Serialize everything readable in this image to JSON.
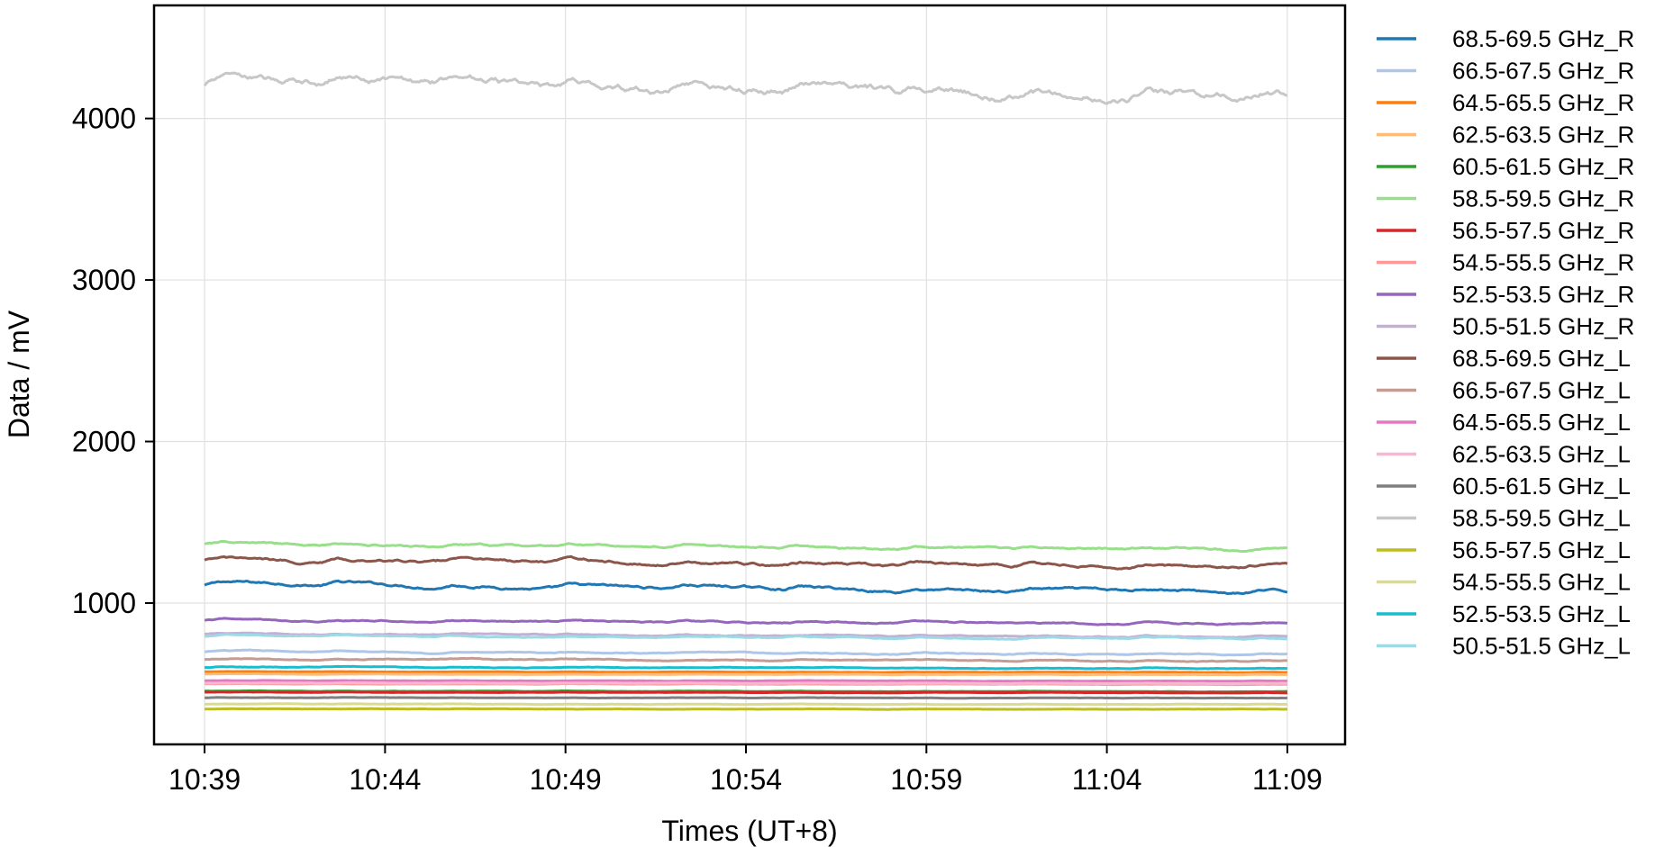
{
  "chart_data": {
    "type": "line",
    "title": "",
    "xlabel": "Times (UT+8)",
    "ylabel": "Data / mV",
    "x_tick_labels": [
      "10:39",
      "10:44",
      "10:49",
      "10:54",
      "10:59",
      "11:04",
      "11:09"
    ],
    "y_tick_labels": [
      "1000",
      "2000",
      "3000",
      "4000"
    ],
    "y_ticks": [
      1000,
      2000,
      3000,
      4000
    ],
    "x_range_minutes": [
      -1.4,
      31.6
    ],
    "x_tick_minutes": [
      0,
      5,
      10,
      15,
      20,
      25,
      30
    ],
    "ylim": [
      125,
      4700
    ],
    "grid": true,
    "legend_position": "outside-right",
    "series": [
      {
        "name": "68.5-69.5 GHz_R",
        "color": "#1f77b4",
        "base": 1120,
        "amp": 35,
        "noise": 8
      },
      {
        "name": "66.5-67.5 GHz_R",
        "color": "#aec7e8",
        "base": 700,
        "amp": 12,
        "noise": 3
      },
      {
        "name": "64.5-65.5 GHz_R",
        "color": "#ff7f0e",
        "base": 575,
        "amp": 3,
        "noise": 1
      },
      {
        "name": "62.5-63.5 GHz_R",
        "color": "#ffbb78",
        "base": 560,
        "amp": 2,
        "noise": 1
      },
      {
        "name": "60.5-61.5 GHz_R",
        "color": "#2ca02c",
        "base": 455,
        "amp": 2,
        "noise": 1
      },
      {
        "name": "58.5-59.5 GHz_R",
        "color": "#98df8a",
        "base": 1365,
        "amp": 22,
        "noise": 6
      },
      {
        "name": "56.5-57.5 GHz_R",
        "color": "#d62728",
        "base": 448,
        "amp": 2,
        "noise": 1
      },
      {
        "name": "54.5-55.5 GHz_R",
        "color": "#ff9896",
        "base": 500,
        "amp": 2,
        "noise": 1
      },
      {
        "name": "52.5-53.5 GHz_R",
        "color": "#9467bd",
        "base": 895,
        "amp": 15,
        "noise": 4
      },
      {
        "name": "50.5-51.5 GHz_R",
        "color": "#c5b0d5",
        "base": 810,
        "amp": 12,
        "noise": 3
      },
      {
        "name": "68.5-69.5 GHz_L",
        "color": "#8c564b",
        "base": 1270,
        "amp": 30,
        "noise": 8
      },
      {
        "name": "66.5-67.5 GHz_L",
        "color": "#c49c94",
        "base": 655,
        "amp": 10,
        "noise": 3
      },
      {
        "name": "64.5-65.5 GHz_L",
        "color": "#e377c2",
        "base": 520,
        "amp": 2,
        "noise": 1
      },
      {
        "name": "62.5-63.5 GHz_L",
        "color": "#f7b6d2",
        "base": 505,
        "amp": 2,
        "noise": 1
      },
      {
        "name": "60.5-61.5 GHz_L",
        "color": "#7f7f7f",
        "base": 415,
        "amp": 2,
        "noise": 1
      },
      {
        "name": "58.5-59.5 GHz_L",
        "color": "#c7c7c7",
        "base": 4250,
        "amp": 80,
        "noise": 22
      },
      {
        "name": "56.5-57.5 GHz_L",
        "color": "#bcbd22",
        "base": 345,
        "amp": 2,
        "noise": 1
      },
      {
        "name": "54.5-55.5 GHz_L",
        "color": "#dbdb8d",
        "base": 375,
        "amp": 2,
        "noise": 1
      },
      {
        "name": "52.5-53.5 GHz_L",
        "color": "#17becf",
        "base": 605,
        "amp": 8,
        "noise": 2
      },
      {
        "name": "50.5-51.5 GHz_L",
        "color": "#9edae5",
        "base": 800,
        "amp": 14,
        "noise": 3
      }
    ]
  }
}
